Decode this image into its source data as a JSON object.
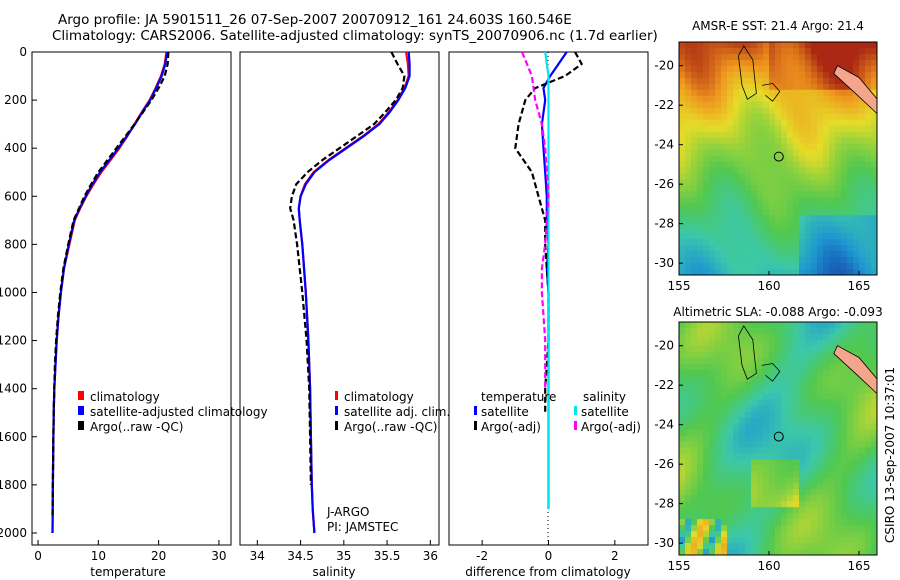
{
  "header": {
    "line1": "Argo profile: JA 5901511_26 07-Sep-2007 20070912_161 24.603S 160.546E",
    "line2": "Climatology: CARS2006. Satellite-adjusted climatology: synTS_20070906.nc (1.7d earlier)"
  },
  "colors": {
    "climatology": "#ff0000",
    "satellite": "#0000ff",
    "argo": "#000000",
    "satellite_salinity_diff": "#00e5ee",
    "argo_salinity_diff": "#ff00ff",
    "land": "#f4a58c"
  },
  "footer": {
    "credit": "CSIRO 13-Sep-2007 10:37:01",
    "owner_line1": "J-ARGO",
    "owner_line2": "PI: JAMSTEC"
  },
  "chart_data": [
    {
      "type": "line",
      "id": "temperature",
      "xlabel": "temperature",
      "ylabel": "",
      "xlim": [
        -1,
        32
      ],
      "ylim": [
        2050,
        0
      ],
      "xticks": [
        0,
        10,
        20,
        30
      ],
      "yticks": [
        0,
        200,
        400,
        600,
        800,
        1000,
        1200,
        1400,
        1600,
        1800,
        2000
      ],
      "legend": [
        "climatology",
        "satellite-adjusted climatology",
        "Argo(..raw -QC)"
      ],
      "series": [
        {
          "name": "climatology",
          "color": "#ff0000",
          "dash": "",
          "x": [
            21.3,
            21.0,
            20.4,
            19.5,
            18.5,
            17.2,
            16.0,
            14.8,
            13.5,
            12.0,
            10.5,
            9.2,
            8.0,
            7.0,
            6.1,
            5.2,
            4.3,
            3.8,
            3.4,
            3.1,
            2.9,
            2.7,
            2.6,
            2.5,
            2.4
          ],
          "y": [
            0,
            50,
            100,
            150,
            200,
            250,
            300,
            350,
            400,
            450,
            500,
            550,
            600,
            650,
            700,
            800,
            900,
            1000,
            1100,
            1200,
            1300,
            1400,
            1500,
            1700,
            2000
          ]
        },
        {
          "name": "satellite-adjusted climatology",
          "color": "#0000ff",
          "dash": "",
          "x": [
            21.4,
            21.1,
            20.5,
            19.6,
            18.6,
            17.3,
            16.1,
            14.7,
            13.3,
            11.8,
            10.3,
            9.0,
            7.9,
            6.9,
            6.0,
            5.1,
            4.3,
            3.8,
            3.4,
            3.1,
            2.9,
            2.7,
            2.6,
            2.5,
            2.4
          ],
          "y": [
            0,
            50,
            100,
            150,
            200,
            250,
            300,
            350,
            400,
            450,
            500,
            550,
            600,
            650,
            700,
            800,
            900,
            1000,
            1100,
            1200,
            1300,
            1400,
            1500,
            1700,
            2000
          ]
        },
        {
          "name": "Argo(..raw -QC)",
          "color": "#000000",
          "dash": "6,3",
          "x": [
            21.6,
            21.5,
            21.0,
            20.0,
            18.8,
            17.4,
            16.0,
            14.5,
            13.0,
            11.5,
            10.0,
            8.8,
            7.7,
            6.8,
            5.9,
            5.0,
            4.2,
            3.7,
            3.3,
            3.0,
            2.8,
            2.7,
            2.6,
            2.5,
            2.4
          ],
          "y": [
            0,
            50,
            100,
            150,
            200,
            250,
            300,
            350,
            400,
            450,
            500,
            550,
            600,
            650,
            700,
            800,
            900,
            1000,
            1100,
            1200,
            1300,
            1400,
            1500,
            1700,
            1930
          ]
        }
      ]
    },
    {
      "type": "line",
      "id": "salinity",
      "xlabel": "salinity",
      "ylabel": "",
      "xlim": [
        33.8,
        36.1
      ],
      "ylim": [
        2050,
        0
      ],
      "xticks": [
        34,
        34.5,
        35,
        35.5,
        36
      ],
      "yticks": [],
      "legend": [
        "climatology",
        "satellite adj. clim.",
        "Argo(..raw -QC)"
      ],
      "series": [
        {
          "name": "climatology",
          "color": "#ff0000",
          "dash": "",
          "x": [
            35.72,
            35.74,
            35.75,
            35.7,
            35.62,
            35.52,
            35.4,
            35.22,
            35.02,
            34.82,
            34.65,
            34.55,
            34.5,
            34.48,
            34.49,
            34.52,
            34.56,
            34.59,
            34.61,
            34.62,
            34.63,
            34.64,
            34.66
          ],
          "y": [
            0,
            50,
            100,
            150,
            200,
            250,
            300,
            350,
            400,
            450,
            500,
            550,
            600,
            650,
            700,
            800,
            1000,
            1200,
            1400,
            1600,
            1800,
            1900,
            2000
          ]
        },
        {
          "name": "satellite adj. clim.",
          "color": "#0000ff",
          "dash": "",
          "x": [
            35.75,
            35.76,
            35.76,
            35.71,
            35.63,
            35.53,
            35.41,
            35.23,
            35.03,
            34.83,
            34.66,
            34.56,
            34.5,
            34.48,
            34.49,
            34.52,
            34.56,
            34.59,
            34.61,
            34.62,
            34.63,
            34.64,
            34.66
          ],
          "y": [
            0,
            50,
            100,
            150,
            200,
            250,
            300,
            350,
            400,
            450,
            500,
            550,
            600,
            650,
            700,
            800,
            1000,
            1200,
            1400,
            1600,
            1800,
            1900,
            2000
          ]
        },
        {
          "name": "Argo(..raw -QC)",
          "color": "#000000",
          "dash": "6,3",
          "x": [
            35.55,
            35.62,
            35.7,
            35.68,
            35.6,
            35.48,
            35.35,
            35.15,
            34.95,
            34.75,
            34.58,
            34.45,
            34.4,
            34.38,
            34.42,
            34.46,
            34.52,
            34.57,
            34.6,
            34.61,
            34.62
          ],
          "y": [
            0,
            50,
            100,
            150,
            200,
            250,
            300,
            350,
            400,
            450,
            500,
            550,
            600,
            650,
            700,
            800,
            1000,
            1200,
            1400,
            1600,
            1800
          ]
        }
      ]
    },
    {
      "type": "line",
      "id": "difference",
      "xlabel": "difference from climatology",
      "ylabel": "",
      "xlim": [
        -3,
        3
      ],
      "ylim": [
        2050,
        0
      ],
      "xticks": [
        -2,
        0,
        2
      ],
      "yticks": [],
      "legend_temperature_title": "temperature",
      "legend_salinity_title": "salinity",
      "legend": [
        "satellite",
        "Argo(-adj)",
        "satellite",
        "Argo(-adj)"
      ],
      "series": [
        {
          "name": "temperature satellite",
          "color": "#0000ff",
          "dash": "",
          "x": [
            0.55,
            0.3,
            0.05,
            -0.15,
            -0.1,
            -0.2,
            -0.15,
            -0.1,
            -0.05,
            -0.05,
            0.0,
            -0.05,
            0.0,
            0.0,
            0.0,
            0.0,
            0.0,
            0.0
          ],
          "y": [
            0,
            50,
            100,
            150,
            200,
            300,
            400,
            500,
            600,
            700,
            800,
            900,
            1000,
            1200,
            1400,
            1600,
            1800,
            1900
          ]
        },
        {
          "name": "temperature Argo(-adj)",
          "color": "#000000",
          "dash": "6,3",
          "x": [
            0.8,
            1.0,
            0.5,
            -0.4,
            -0.7,
            -0.9,
            -1.0,
            -0.5,
            -0.3,
            -0.1,
            -0.1,
            -0.05,
            0.0,
            0.0,
            -0.1,
            -0.1
          ],
          "y": [
            0,
            50,
            100,
            150,
            200,
            300,
            400,
            500,
            600,
            700,
            800,
            900,
            1000,
            1200,
            1400,
            1500
          ]
        },
        {
          "name": "salinity satellite",
          "color": "#00e5ee",
          "dash": "",
          "x": [
            -0.1,
            0.0,
            0.0,
            0.0,
            0.0,
            0.0,
            0.0,
            0.0,
            0.0,
            0.0,
            0.0,
            0.0
          ],
          "y": [
            0,
            100,
            200,
            400,
            600,
            800,
            1000,
            1200,
            1400,
            1600,
            1800,
            1900
          ]
        },
        {
          "name": "salinity Argo(-adj)",
          "color": "#ff00ff",
          "dash": "6,3",
          "x": [
            -0.8,
            -0.5,
            -0.4,
            -0.2,
            -0.1,
            0.0,
            -0.1,
            -0.2,
            -0.2,
            -0.1,
            -0.1
          ],
          "y": [
            0,
            100,
            200,
            300,
            400,
            600,
            800,
            900,
            1000,
            1200,
            1400
          ]
        }
      ]
    },
    {
      "type": "heatmap",
      "id": "sst_map",
      "title": "AMSR-E SST: 21.4 Argo: 21.4",
      "xlim": [
        155,
        166
      ],
      "ylim": [
        -30.6,
        -18.8
      ],
      "xticks": [
        155,
        160,
        165
      ],
      "yticks": [
        -20,
        -22,
        -24,
        -26,
        -28,
        -30
      ],
      "xticklabels": [
        "155",
        "160",
        "165"
      ],
      "yticklabels": [
        "-20",
        "-22",
        "-24",
        "-26",
        "-28",
        "-30"
      ],
      "argo_position": {
        "lon": 160.546,
        "lat": -24.603
      }
    },
    {
      "type": "heatmap",
      "id": "sla_map",
      "title": "Altimetric SLA: -0.088 Argo: -0.093",
      "xlim": [
        155,
        166
      ],
      "ylim": [
        -30.6,
        -18.8
      ],
      "xticks": [
        155,
        160,
        165
      ],
      "yticks": [
        -20,
        -22,
        -24,
        -26,
        -28,
        -30
      ],
      "xticklabels": [
        "155",
        "160",
        "165"
      ],
      "yticklabels": [
        "-20",
        "-22",
        "-24",
        "-26",
        "-28",
        "-30"
      ],
      "argo_position": {
        "lon": 160.546,
        "lat": -24.603
      }
    }
  ]
}
